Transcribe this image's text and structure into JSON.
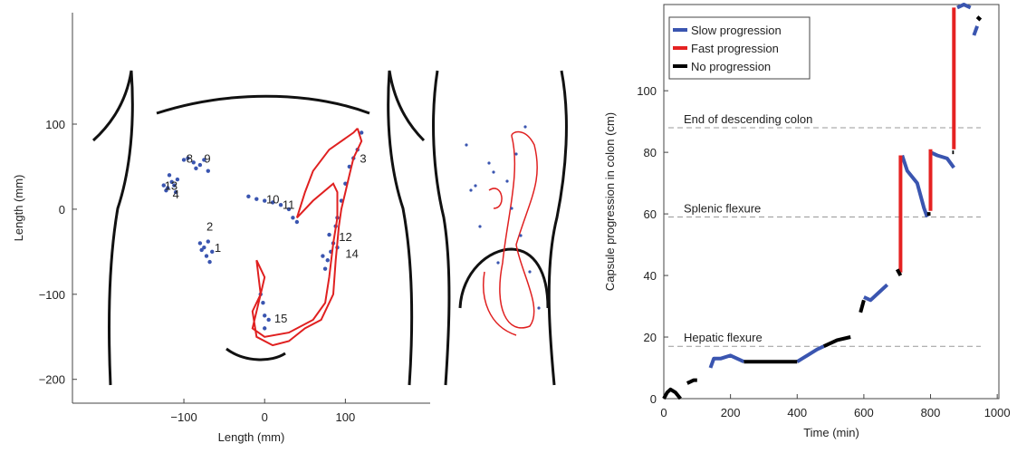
{
  "chart_data": [
    {
      "type": "scatter",
      "xlabel": "Length (mm)",
      "ylabel": "Length (mm)",
      "xlim": [
        -238,
        205
      ],
      "ylim": [
        -228,
        231
      ],
      "xticks": [
        {
          "value": -100,
          "label": "−100"
        },
        0,
        100
      ],
      "yticks": [
        {
          "value": -200,
          "label": "−200"
        },
        {
          "value": -100,
          "label": "−100"
        },
        0,
        100
      ],
      "series": [
        {
          "type": "scatter",
          "color": "#3a55b0",
          "x": [
            -100,
            -95,
            -88,
            -80,
            -75,
            -70,
            -85,
            -125,
            -120,
            -115,
            -110,
            -118,
            -108,
            -122,
            -112,
            -80,
            -75,
            -70,
            -65,
            -72,
            -78,
            -68,
            -20,
            -10,
            0,
            10,
            20,
            30,
            35,
            40,
            80,
            85,
            82,
            78,
            75,
            88,
            90,
            95,
            100,
            105,
            110,
            115,
            120,
            90,
            72,
            -5,
            -2,
            0,
            5,
            0
          ],
          "y": [
            58,
            60,
            55,
            52,
            58,
            45,
            48,
            28,
            25,
            32,
            20,
            40,
            35,
            22,
            28,
            -40,
            -45,
            -38,
            -50,
            -55,
            -48,
            -62,
            15,
            12,
            10,
            8,
            5,
            0,
            -10,
            -15,
            -30,
            -40,
            -50,
            -60,
            -70,
            -20,
            -10,
            10,
            30,
            50,
            60,
            70,
            90,
            -45,
            -55,
            -100,
            -110,
            -125,
            -130,
            -140
          ]
        },
        {
          "type": "line",
          "color": "#e02020",
          "x": [
            115,
            120,
            110,
            105,
            100,
            95,
            92,
            88,
            85,
            70,
            50,
            30,
            10,
            -10,
            -15,
            -5,
            0,
            -10,
            -5,
            -15,
            0,
            30,
            60,
            75,
            80,
            85,
            90,
            90,
            85,
            60,
            40,
            50,
            60,
            80,
            110,
            115
          ],
          "y": [
            95,
            80,
            60,
            40,
            20,
            0,
            -20,
            -60,
            -100,
            -130,
            -140,
            -155,
            -160,
            -150,
            -120,
            -100,
            -80,
            -60,
            -100,
            -140,
            -150,
            -145,
            -130,
            -110,
            -80,
            -40,
            -10,
            20,
            30,
            10,
            -10,
            20,
            45,
            70,
            90,
            95
          ]
        }
      ],
      "annotations": [
        {
          "text": "1",
          "x": -62,
          "y": -45
        },
        {
          "text": "2",
          "x": -72,
          "y": -20
        },
        {
          "text": "3",
          "x": 118,
          "y": 60
        },
        {
          "text": "4",
          "x": -114,
          "y": 18
        },
        {
          "text": "8",
          "x": -97,
          "y": 60
        },
        {
          "text": "9",
          "x": -75,
          "y": 60
        },
        {
          "text": "10",
          "x": 2,
          "y": 12
        },
        {
          "text": "11",
          "x": 22,
          "y": 6
        },
        {
          "text": "12",
          "x": 92,
          "y": -32
        },
        {
          "text": "13",
          "x": -124,
          "y": 28
        },
        {
          "text": "14",
          "x": 100,
          "y": -52
        },
        {
          "text": "15",
          "x": 12,
          "y": -128
        }
      ]
    },
    {
      "type": "line",
      "xlabel": "Time (min)",
      "ylabel": "Capsule progression in colon (cm)",
      "xlim": [
        0,
        1005
      ],
      "ylim": [
        0,
        128
      ],
      "xticks": [
        0,
        200,
        400,
        600,
        800,
        1000
      ],
      "yticks": [
        0,
        20,
        40,
        60,
        80,
        100
      ],
      "legend": "upper left",
      "hlines": [
        {
          "label": "End of descending colon",
          "value": 88
        },
        {
          "label": "Splenic flexure",
          "value": 59
        },
        {
          "label": "Hepatic flexure",
          "value": 17
        }
      ],
      "series": [
        {
          "name": "Slow progression",
          "color": "#3a55b0",
          "x": [
            140,
            150,
            170,
            200,
            240,
            null,
            400,
            430,
            460,
            480,
            null,
            600,
            620,
            650,
            670,
            null,
            715,
            730,
            760,
            780,
            790,
            null,
            800,
            820,
            850,
            870,
            null,
            880,
            900,
            920,
            null,
            930,
            940
          ],
          "values": [
            10,
            13,
            13,
            14,
            12,
            null,
            12,
            14,
            16,
            17,
            null,
            33,
            32,
            35,
            37,
            null,
            79,
            74,
            70,
            62,
            59,
            null,
            80,
            79,
            78,
            75,
            null,
            127,
            128,
            127,
            null,
            118,
            121
          ]
        },
        {
          "name": "Fast progression",
          "color": "#e52222",
          "x": [
            710,
            710,
            null,
            800,
            800,
            null,
            870,
            870
          ],
          "values": [
            41,
            79,
            null,
            61,
            81,
            null,
            81,
            127
          ]
        },
        {
          "name": "No progression",
          "color": "#000000",
          "x": [
            0,
            10,
            20,
            35,
            50,
            null,
            70,
            90,
            100,
            null,
            240,
            300,
            350,
            400,
            null,
            480,
            520,
            560,
            null,
            590,
            600,
            null,
            700,
            710,
            null,
            790,
            800,
            null,
            865,
            870,
            null,
            940,
            950
          ],
          "values": [
            0,
            2,
            3,
            2,
            0,
            null,
            5,
            6,
            6,
            null,
            12,
            12,
            12,
            12,
            null,
            17,
            19,
            20,
            null,
            28,
            32,
            null,
            42,
            40,
            null,
            60,
            60,
            null,
            80,
            80,
            null,
            124,
            123
          ]
        }
      ]
    }
  ]
}
